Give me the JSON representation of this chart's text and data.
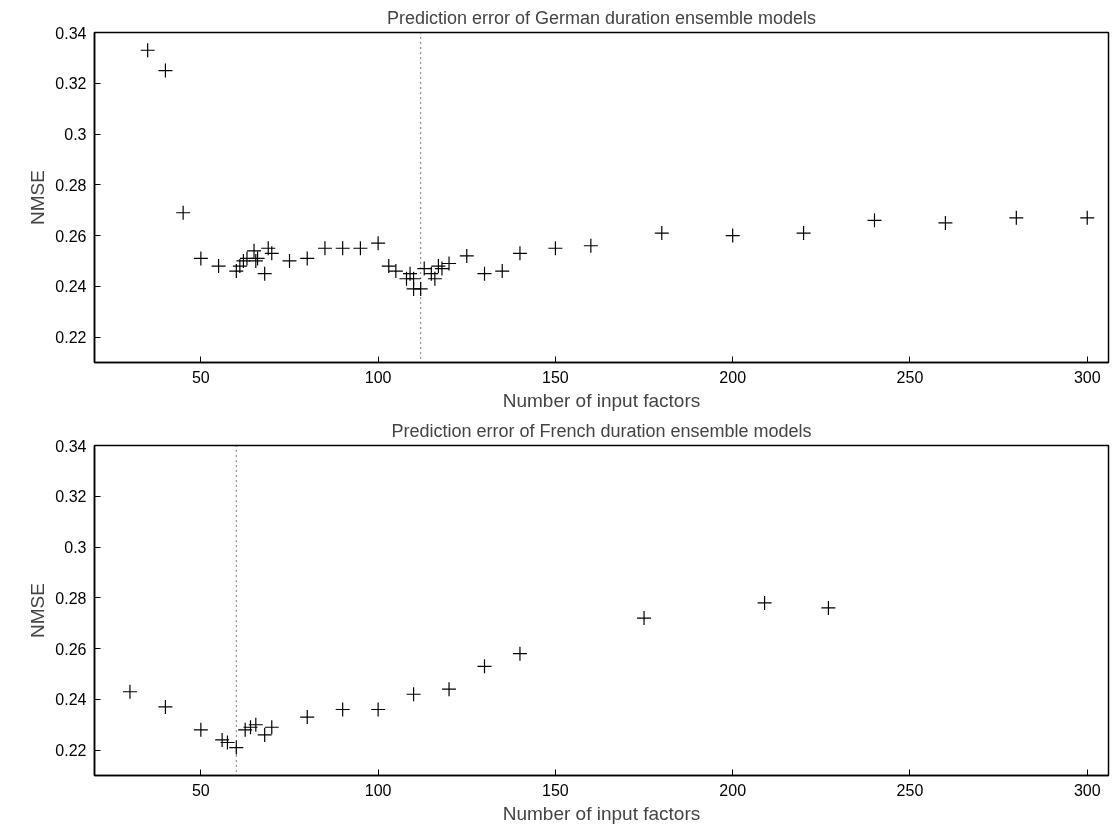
{
  "chart_data": [
    {
      "type": "scatter",
      "title": "Prediction error of German duration ensemble models",
      "xlabel": "Number of input factors",
      "ylabel": "NMSE",
      "marker": "cross",
      "color": "#000000",
      "grid": false,
      "x": [
        35,
        40,
        45,
        50,
        55,
        60,
        61,
        62,
        63,
        65,
        65.5,
        66,
        68,
        69,
        70,
        75,
        80,
        85,
        90,
        95,
        100,
        103,
        105,
        108,
        109,
        110,
        110,
        112,
        113,
        115,
        116,
        117,
        118,
        120,
        125,
        130,
        135,
        140,
        150,
        160,
        180,
        200,
        220,
        240,
        260,
        280,
        300
      ],
      "values": [
        0.333,
        0.325,
        0.269,
        0.251,
        0.248,
        0.246,
        0.248,
        0.25,
        0.251,
        0.254,
        0.25,
        0.251,
        0.245,
        0.255,
        0.253,
        0.25,
        0.251,
        0.255,
        0.255,
        0.255,
        0.257,
        0.248,
        0.246,
        0.243,
        0.245,
        0.243,
        0.239,
        0.239,
        0.247,
        0.245,
        0.243,
        0.248,
        0.247,
        0.249,
        0.252,
        0.245,
        0.246,
        0.253,
        0.255,
        0.256,
        0.261,
        0.26,
        0.261,
        0.266,
        0.265,
        0.267,
        0.267
      ],
      "xlim": [
        20,
        306
      ],
      "ylim": [
        0.21,
        0.34
      ],
      "xticks": [
        50,
        100,
        150,
        200,
        250,
        300
      ],
      "yticks": [
        0.22,
        0.24,
        0.26,
        0.28,
        0.3,
        0.32,
        0.34
      ],
      "ref_lines": [
        {
          "axis": "x",
          "value": 112,
          "color": "#000000",
          "line_style": "dotted"
        }
      ]
    },
    {
      "type": "scatter",
      "title": "Prediction error of French duration ensemble models",
      "xlabel": "Number of input factors",
      "ylabel": "NMSE",
      "marker": "cross",
      "color": "#000000",
      "grid": false,
      "x": [
        30,
        40,
        50,
        56,
        57.5,
        60,
        62.5,
        64,
        65.5,
        68,
        70,
        80,
        90,
        100,
        110,
        120,
        130,
        140,
        175,
        209,
        227
      ],
      "values": [
        0.243,
        0.237,
        0.228,
        0.224,
        0.223,
        0.221,
        0.228,
        0.229,
        0.23,
        0.226,
        0.229,
        0.233,
        0.236,
        0.236,
        0.242,
        0.244,
        0.253,
        0.258,
        0.272,
        0.278,
        0.276
      ],
      "xlim": [
        20,
        306
      ],
      "ylim": [
        0.21,
        0.34
      ],
      "xticks": [
        50,
        100,
        150,
        200,
        250,
        300
      ],
      "yticks": [
        0.22,
        0.24,
        0.26,
        0.28,
        0.3,
        0.32,
        0.34
      ],
      "ref_lines": [
        {
          "axis": "x",
          "value": 60,
          "color": "#000000",
          "line_style": "dotted"
        }
      ]
    }
  ]
}
